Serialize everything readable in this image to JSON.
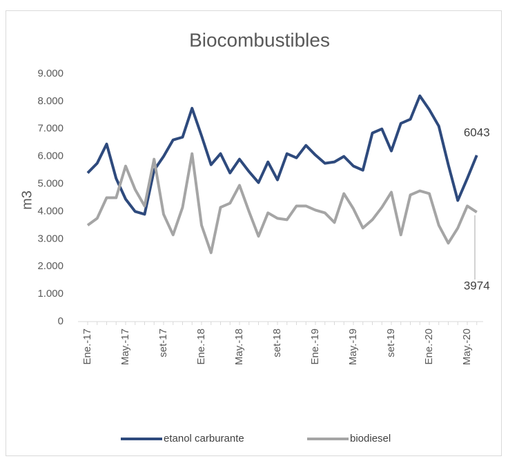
{
  "chart_data": {
    "type": "line",
    "title": "Biocombustibles",
    "y_label": "m3",
    "categories": [
      "Ene.-17",
      null,
      null,
      null,
      "May.-17",
      null,
      null,
      null,
      "set-17",
      null,
      null,
      null,
      "Ene.-18",
      null,
      null,
      null,
      "May.-18",
      null,
      null,
      null,
      "set-18",
      null,
      null,
      null,
      "Ene.-19",
      null,
      null,
      null,
      "May.-19",
      null,
      null,
      null,
      "set-19",
      null,
      null,
      null,
      "Ene.-20",
      null,
      null,
      null,
      "May.-20",
      null
    ],
    "series": [
      {
        "name": "etanol carburante",
        "color": "#2e4a7d",
        "values": [
          5400,
          5750,
          6450,
          5200,
          4450,
          4000,
          3900,
          5500,
          6000,
          6600,
          6700,
          7750,
          6750,
          5700,
          6100,
          5400,
          5900,
          5450,
          5050,
          5800,
          5150,
          6100,
          5950,
          6400,
          6050,
          5750,
          5800,
          6000,
          5650,
          5500,
          6850,
          7000,
          6200,
          7200,
          7350,
          8200,
          7700,
          7100,
          5700,
          4400,
          5200,
          6043
        ]
      },
      {
        "name": "biodiesel",
        "color": "#a5a5a5",
        "values": [
          3500,
          3750,
          4500,
          4500,
          5650,
          4800,
          4200,
          5900,
          3900,
          3150,
          4150,
          6100,
          3500,
          2500,
          4150,
          4300,
          4950,
          4000,
          3100,
          3950,
          3750,
          3700,
          4200,
          4200,
          4050,
          3950,
          3600,
          4650,
          4100,
          3400,
          3700,
          4150,
          4700,
          3150,
          4600,
          4750,
          4650,
          3500,
          2850,
          3400,
          4200,
          3974
        ]
      }
    ],
    "ylim": [
      0,
      9000
    ],
    "yticks": [
      0,
      {
        "value": 1000,
        "label": "1.000"
      },
      {
        "value": 2000,
        "label": "2.000"
      },
      {
        "value": 3000,
        "label": "3.000"
      },
      {
        "value": 4000,
        "label": "4.000"
      },
      {
        "value": 5000,
        "label": "5.000"
      },
      {
        "value": 6000,
        "label": "6.000"
      },
      {
        "value": 7000,
        "label": "7.000"
      },
      {
        "value": 8000,
        "label": "8.000"
      },
      {
        "value": 9000,
        "label": "9.000"
      }
    ],
    "legend": "bottom"
  }
}
